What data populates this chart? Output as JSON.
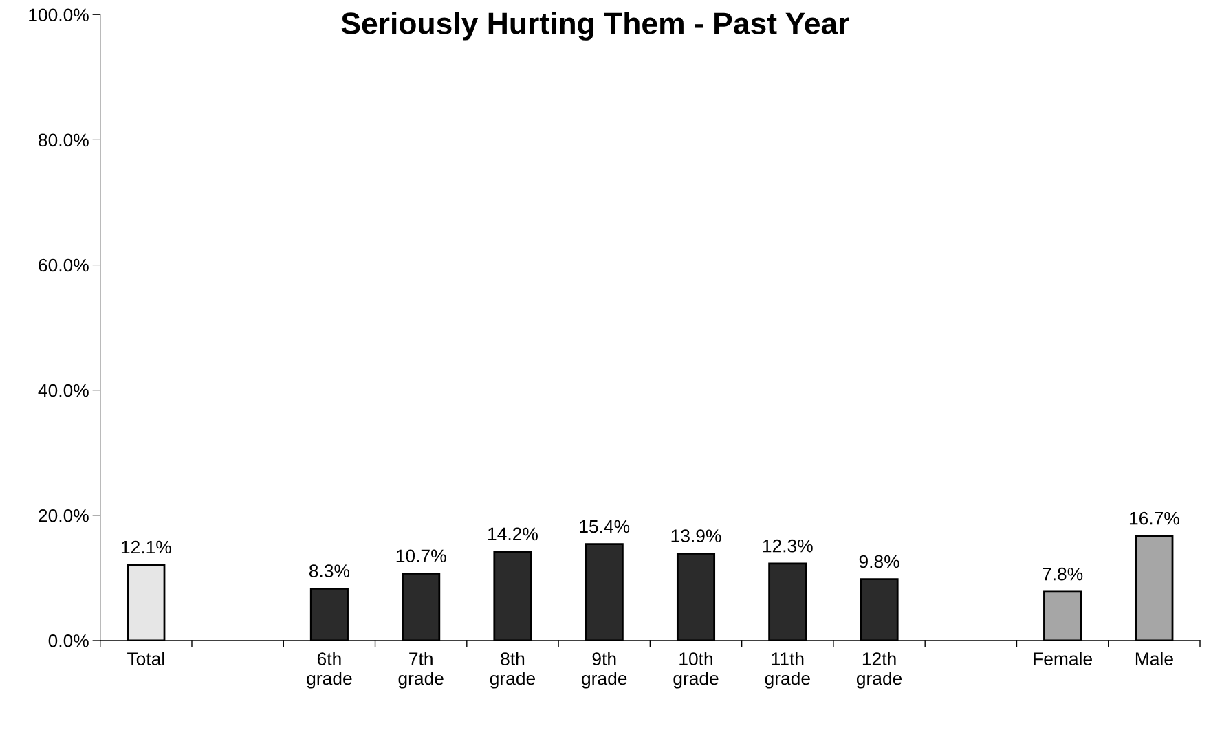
{
  "chart_data": {
    "type": "bar",
    "title": "Seriously Hurting Them - Past Year",
    "categories": [
      "Total",
      null,
      "6th\ngrade",
      "7th\ngrade",
      "8th\ngrade",
      "9th\ngrade",
      "10th\ngrade",
      "11th\ngrade",
      "12th\ngrade",
      null,
      "Female",
      "Male"
    ],
    "values": [
      12.1,
      null,
      8.3,
      10.7,
      14.2,
      15.4,
      13.9,
      12.3,
      9.8,
      null,
      7.8,
      16.7
    ],
    "colors": [
      "#e6e6e6",
      null,
      "#2b2b2b",
      "#2b2b2b",
      "#2b2b2b",
      "#2b2b2b",
      "#2b2b2b",
      "#2b2b2b",
      "#2b2b2b",
      null,
      "#a6a6a6",
      "#a6a6a6"
    ],
    "value_labels": [
      "12.1%",
      null,
      "8.3%",
      "10.7%",
      "14.2%",
      "15.4%",
      "13.9%",
      "12.3%",
      "9.8%",
      null,
      "7.8%",
      "16.7%"
    ],
    "ylim": [
      0,
      100
    ],
    "yticks": [
      {
        "value": 0,
        "label": "0.0%"
      },
      {
        "value": 20,
        "label": "20.0%"
      },
      {
        "value": 40,
        "label": "40.0%"
      },
      {
        "value": 60,
        "label": "60.0%"
      },
      {
        "value": 80,
        "label": "80.0%"
      },
      {
        "value": 100,
        "label": "100.0%"
      }
    ],
    "grid": false,
    "legend": false
  }
}
